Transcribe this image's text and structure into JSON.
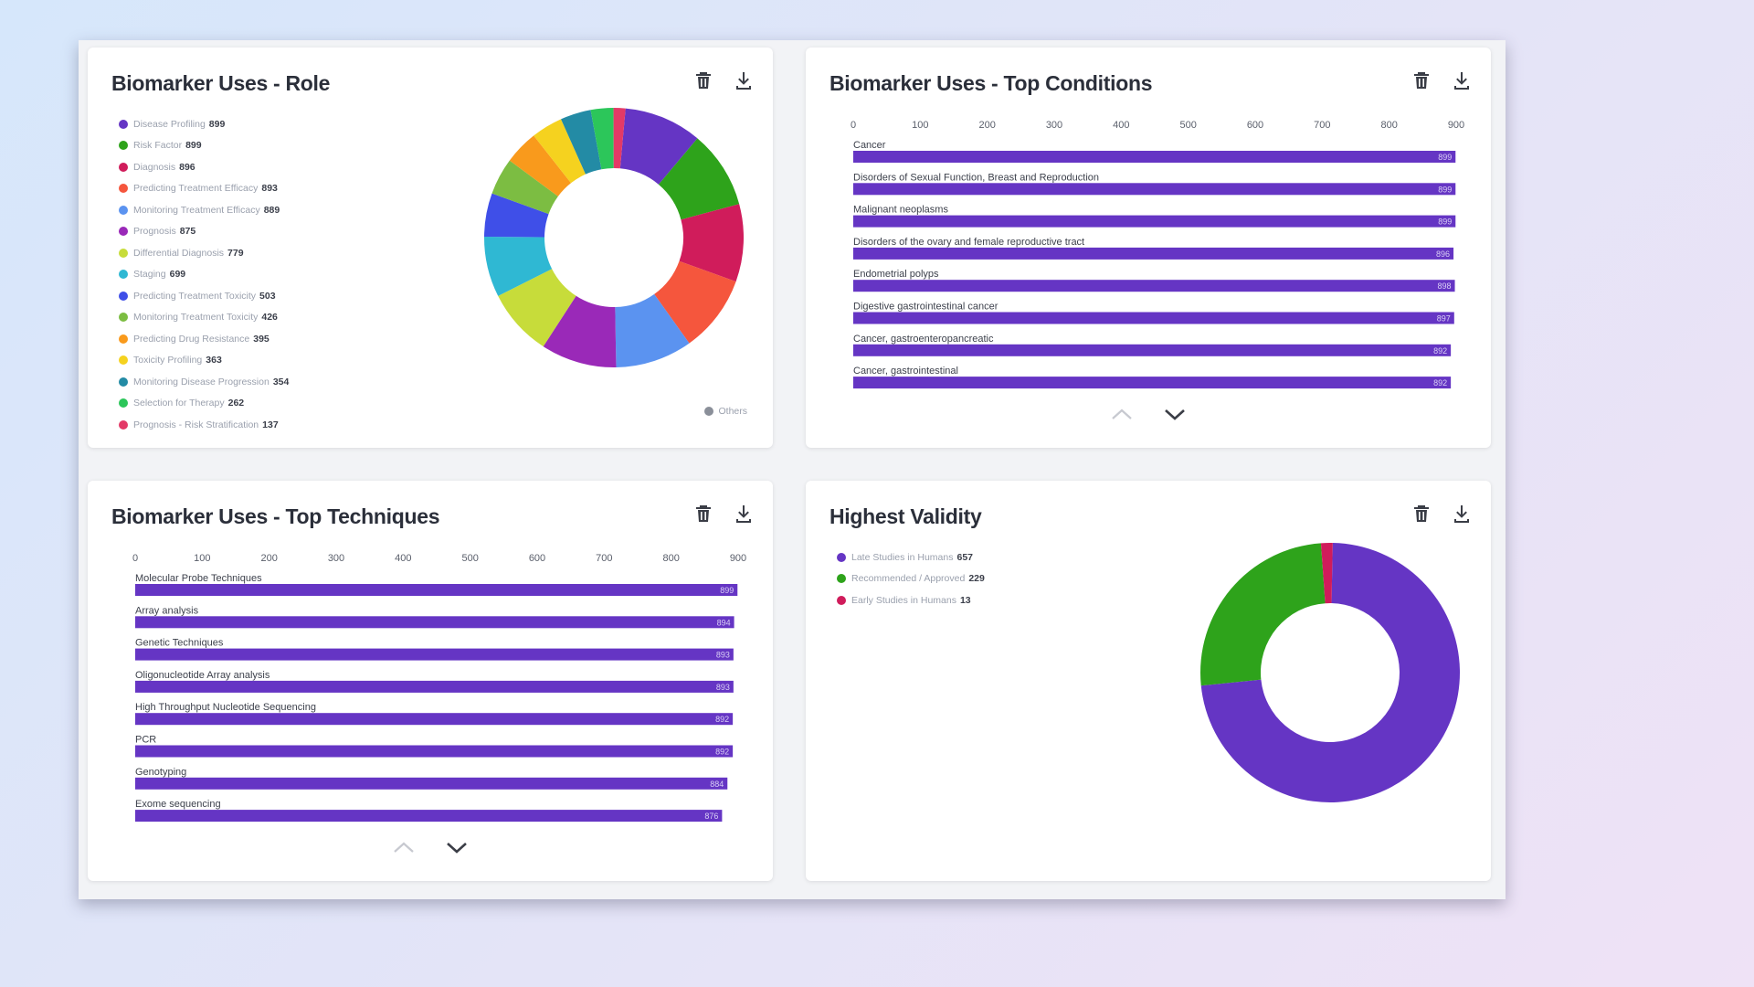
{
  "toolbar": {
    "delete_icon": "trash-icon",
    "download_icon": "download-icon"
  },
  "colors": {
    "bar": "#6535c4",
    "accent": "#6535c4",
    "text": "#2b2f3a"
  },
  "panels": {
    "role": {
      "title": "Biomarker Uses - Role",
      "others_label": "Others"
    },
    "conditions": {
      "title": "Biomarker Uses - Top Conditions"
    },
    "techniques": {
      "title": "Biomarker Uses - Top Techniques"
    },
    "validity": {
      "title": "Highest Validity"
    }
  },
  "chart_data": [
    {
      "id": "role",
      "type": "pie",
      "title": "Biomarker Uses - Role",
      "legend": "left",
      "slices": [
        {
          "label": "Disease Profiling",
          "value": 899,
          "color": "#6535c4"
        },
        {
          "label": "Risk Factor",
          "value": 899,
          "color": "#2ea31b"
        },
        {
          "label": "Diagnosis",
          "value": 896,
          "color": "#d01c5b"
        },
        {
          "label": "Predicting Treatment Efficacy",
          "value": 893,
          "color": "#f5563d"
        },
        {
          "label": "Monitoring Treatment Efficacy",
          "value": 889,
          "color": "#5b93f0"
        },
        {
          "label": "Prognosis",
          "value": 875,
          "color": "#9a29b8"
        },
        {
          "label": "Differential Diagnosis",
          "value": 779,
          "color": "#c7dc3a"
        },
        {
          "label": "Staging",
          "value": 699,
          "color": "#2fb8d3"
        },
        {
          "label": "Predicting Treatment Toxicity",
          "value": 503,
          "color": "#3f4fe8"
        },
        {
          "label": "Monitoring Treatment Toxicity",
          "value": 426,
          "color": "#7cbd42"
        },
        {
          "label": "Predicting Drug Resistance",
          "value": 395,
          "color": "#f99a1c"
        },
        {
          "label": "Toxicity Profiling",
          "value": 363,
          "color": "#f5d21f"
        },
        {
          "label": "Monitoring Disease Progression",
          "value": 354,
          "color": "#238ba5"
        },
        {
          "label": "Selection for Therapy",
          "value": 262,
          "color": "#2cc65a"
        },
        {
          "label": "Prognosis - Risk Stratification",
          "value": 137,
          "color": "#e33a67"
        }
      ]
    },
    {
      "id": "conditions",
      "type": "bar",
      "title": "Biomarker Uses - Top Conditions",
      "orientation": "horizontal",
      "xlim": [
        0,
        900
      ],
      "ticks": [
        0,
        100,
        200,
        300,
        400,
        500,
        600,
        700,
        800,
        900
      ],
      "categories": [
        "Cancer",
        "Disorders of Sexual Function, Breast and Reproduction",
        "Malignant neoplasms",
        "Disorders of the ovary and female reproductive tract",
        "Endometrial polyps",
        "Digestive gastrointestinal cancer",
        "Cancer, gastroenteropancreatic",
        "Cancer, gastrointestinal"
      ],
      "values": [
        899,
        899,
        899,
        896,
        898,
        897,
        892,
        892
      ]
    },
    {
      "id": "techniques",
      "type": "bar",
      "title": "Biomarker Uses - Top Techniques",
      "orientation": "horizontal",
      "xlim": [
        0,
        900
      ],
      "ticks": [
        0,
        100,
        200,
        300,
        400,
        500,
        600,
        700,
        800,
        900
      ],
      "categories": [
        "Molecular Probe Techniques",
        "Array analysis",
        "Genetic Techniques",
        "Oligonucleotide Array analysis",
        "High Throughput Nucleotide Sequencing",
        "PCR",
        "Genotyping",
        "Exome sequencing"
      ],
      "values": [
        899,
        894,
        893,
        893,
        892,
        892,
        884,
        876
      ]
    },
    {
      "id": "validity",
      "type": "pie",
      "title": "Highest Validity",
      "legend": "top-left",
      "slices": [
        {
          "label": "Late Studies in Humans",
          "value": 657,
          "color": "#6535c4"
        },
        {
          "label": "Recommended / Approved",
          "value": 229,
          "color": "#2ea31b"
        },
        {
          "label": "Early Studies in Humans",
          "value": 13,
          "color": "#d01c5b"
        }
      ]
    }
  ]
}
